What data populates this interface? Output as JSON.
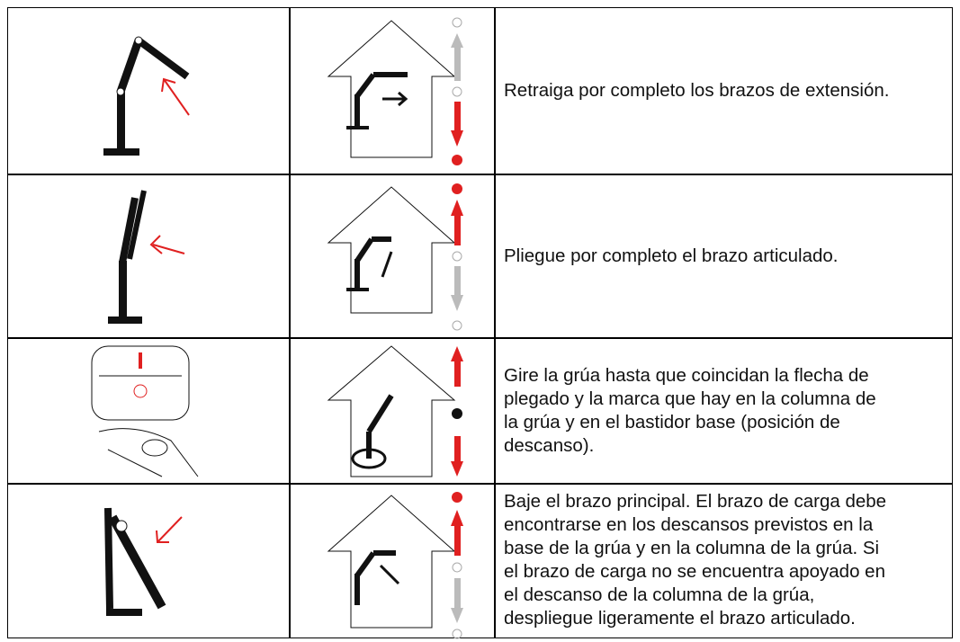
{
  "table": {
    "rows": [
      {
        "text": [
          "Retraiga por completo los brazos de extensión."
        ]
      },
      {
        "text": [
          "Pliegue por completo el brazo articulado."
        ]
      },
      {
        "text": [
          "Gire la grúa hasta que coincidan la flecha de",
          "plegado y la marca que hay en la columna de",
          "la grúa y en el bastidor base (posición de",
          "descanso)."
        ]
      },
      {
        "text": [
          "Baje el brazo principal. El brazo de carga debe",
          "encontrarse en los descansos previstos en la",
          "base de la grúa y en la columna de la grúa. Si",
          "el brazo de carga no se encuentra apoyado en",
          "el descanso de la columna de la grúa,",
          "despliegue ligeramente el brazo articulado."
        ]
      }
    ]
  }
}
